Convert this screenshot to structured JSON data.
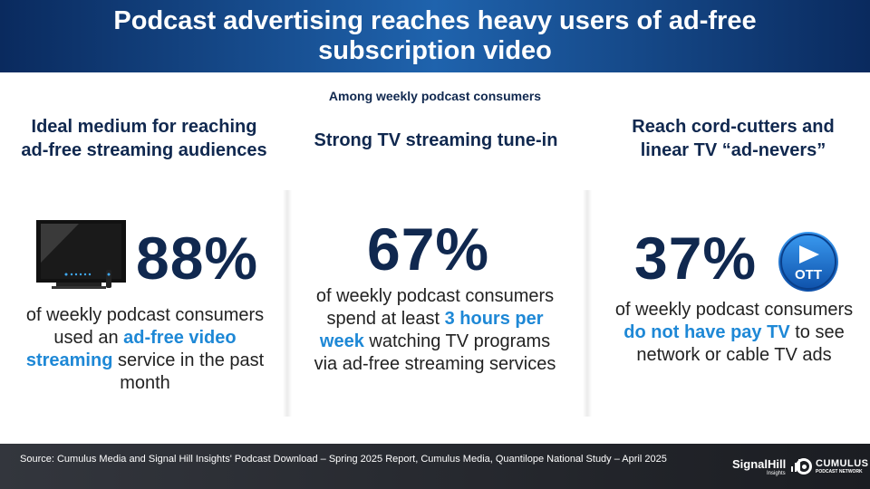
{
  "header": {
    "title": "Podcast advertising reaches heavy users of ad-free subscription video"
  },
  "subtitle": "Among weekly podcast consumers",
  "columns": [
    {
      "title": "Ideal medium for reaching ad-free streaming audiences",
      "stat": "88%",
      "desc_before": "of weekly podcast consumers used an ",
      "desc_highlight": "ad-free video streaming",
      "desc_after": " service in the past month",
      "icon": "tv-icon"
    },
    {
      "title": "Strong TV streaming tune-in",
      "stat": "67%",
      "desc_before": "of weekly podcast consumers spend at least ",
      "desc_highlight": "3 hours per week",
      "desc_after": " watching TV programs via ad-free streaming services"
    },
    {
      "title": "Reach cord-cutters and linear TV “ad-nevers”",
      "stat": "37%",
      "desc_before": "of weekly podcast consumers ",
      "desc_highlight": "do not have pay TV",
      "desc_after": " to see network or cable TV ads",
      "icon": "ott-icon",
      "icon_label": "OTT"
    }
  ],
  "footer": {
    "source": "Source: Cumulus Media and Signal Hill Insights' Podcast Download – Spring 2025 Report, Cumulus Media, Quantilope National Study – April 2025",
    "logo_signalhill": "SignalHill",
    "logo_signalhill_sub": "Insights",
    "logo_cumulus": "CUMULUS",
    "logo_cumulus_sub": "PODCAST NETWORK"
  },
  "colors": {
    "navy": "#10284f",
    "accent": "#1e88d6",
    "header_blue": "#1f63ad"
  }
}
